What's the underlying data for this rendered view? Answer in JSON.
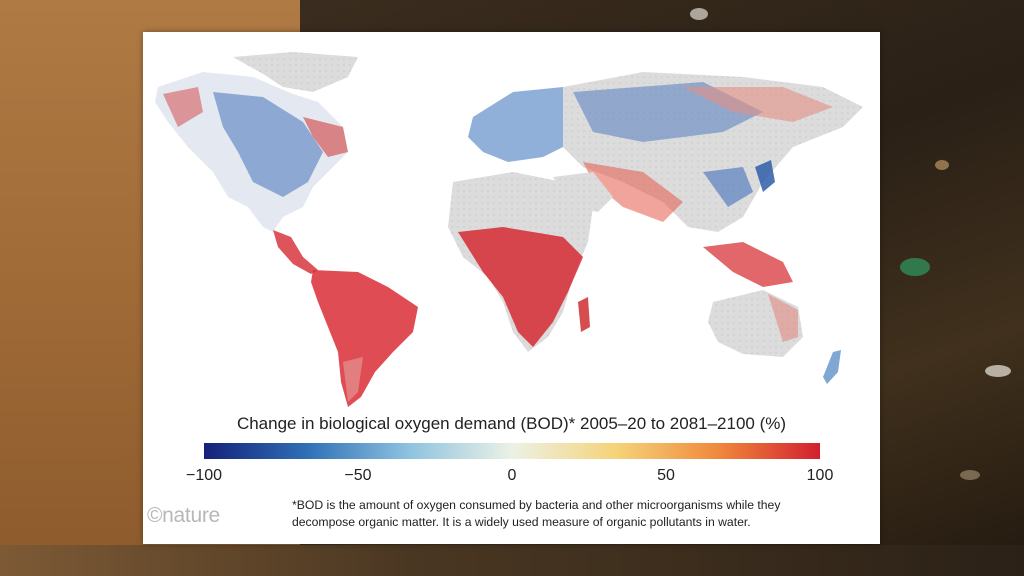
{
  "map": {
    "title": "Change in biological oxygen demand (BOD)* 2005–20 to 2081–2100 (%)",
    "colorbar": {
      "min": -100,
      "max": 100,
      "ticks": [
        "−100",
        "−50",
        "0",
        "50",
        "100"
      ],
      "colors": [
        "#14217a",
        "#2f6fb6",
        "#8ec3e0",
        "#ecf1e6",
        "#f5d47a",
        "#f08a3c",
        "#d21f2f"
      ]
    },
    "footnote_lines": [
      "*BOD is the amount of oxygen consumed by bacteria and other microorganisms while they",
      "decompose organic matter. It is a widely used measure of organic pollutants in water."
    ],
    "credit": "©nature"
  }
}
